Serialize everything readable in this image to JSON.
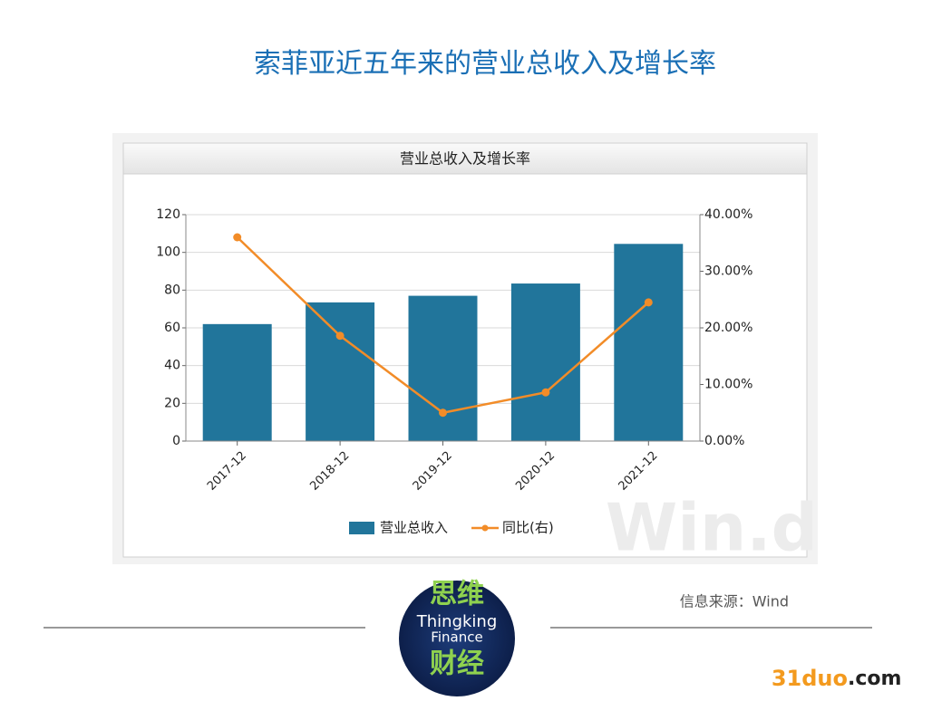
{
  "slide": {
    "title": "索菲亚近五年来的营业总收入及增长率",
    "source": "信息来源：Wind",
    "watermark": "Win.d",
    "logo": {
      "top": "思维",
      "line1": "Thingking",
      "line2": "Finance",
      "bottom": "财经"
    },
    "site": {
      "name": "31duo",
      "suffix": ".com"
    }
  },
  "chart_data": {
    "type": "combo",
    "title": "营业总收入及增长率",
    "categories": [
      "2017-12",
      "2018-12",
      "2019-12",
      "2020-12",
      "2021-12"
    ],
    "series": [
      {
        "name": "营业总收入",
        "type": "bar",
        "color": "#21759b",
        "values": [
          62,
          73.5,
          77,
          83.5,
          104.5
        ]
      },
      {
        "name": "同比(右)",
        "type": "line",
        "axis": "y2",
        "color": "#f28c28",
        "values": [
          36,
          18.6,
          5,
          8.6,
          24.5
        ]
      }
    ],
    "ylim": [
      0,
      120
    ],
    "yticks": [
      0,
      20,
      40,
      60,
      80,
      100,
      120
    ],
    "y2lim": [
      0,
      40
    ],
    "y2ticks": [
      {
        "value": 0,
        "label": "0.00%"
      },
      {
        "value": 10,
        "label": "10.00%"
      },
      {
        "value": 20,
        "label": "20.00%"
      },
      {
        "value": 30,
        "label": "30.00%"
      },
      {
        "value": 40,
        "label": "40.00%"
      }
    ],
    "grid": true,
    "legend": "bottom"
  }
}
